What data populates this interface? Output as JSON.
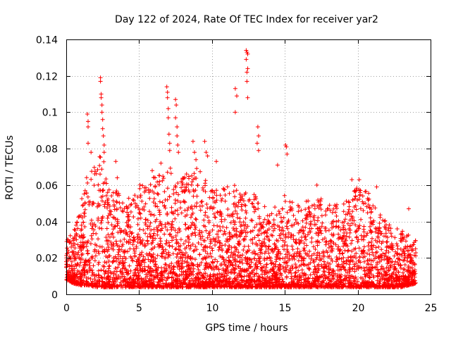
{
  "chart_data": {
    "type": "scatter",
    "title": "Day 122 of 2024, Rate Of TEC Index for receiver yar2",
    "xlabel": "GPS time / hours",
    "ylabel": "ROTI / TECUs",
    "xlim": [
      0,
      25
    ],
    "ylim": [
      0,
      0.14
    ],
    "x_ticks": [
      "0",
      "5",
      "10",
      "15",
      "20",
      "25"
    ],
    "y_ticks": [
      "0",
      "0.02",
      "0.04",
      "0.06",
      "0.08",
      "0.1",
      "0.12",
      "0.14"
    ],
    "grid": true,
    "marker": "plus",
    "color": "#ff0000",
    "series": [
      {
        "name": "ROTI",
        "note": "dense red point cloud; peaks listed, bulk summarized by envelope",
        "data_x_range": [
          0,
          24
        ],
        "baseline_envelope": [
          [
            0.0,
            0.008,
            0.03
          ],
          [
            0.5,
            0.006,
            0.035
          ],
          [
            1.0,
            0.005,
            0.05
          ],
          [
            1.5,
            0.005,
            0.07
          ],
          [
            2.0,
            0.004,
            0.075
          ],
          [
            2.5,
            0.004,
            0.08
          ],
          [
            3.0,
            0.004,
            0.055
          ],
          [
            3.5,
            0.004,
            0.06
          ],
          [
            4.0,
            0.004,
            0.05
          ],
          [
            5.0,
            0.004,
            0.06
          ],
          [
            6.0,
            0.004,
            0.065
          ],
          [
            7.0,
            0.004,
            0.07
          ],
          [
            8.0,
            0.004,
            0.065
          ],
          [
            9.0,
            0.004,
            0.07
          ],
          [
            10.0,
            0.004,
            0.06
          ],
          [
            11.0,
            0.004,
            0.06
          ],
          [
            12.0,
            0.004,
            0.06
          ],
          [
            13.0,
            0.004,
            0.055
          ],
          [
            14.0,
            0.004,
            0.045
          ],
          [
            15.0,
            0.004,
            0.055
          ],
          [
            16.0,
            0.004,
            0.05
          ],
          [
            17.0,
            0.004,
            0.055
          ],
          [
            18.0,
            0.004,
            0.05
          ],
          [
            19.0,
            0.004,
            0.05
          ],
          [
            20.0,
            0.004,
            0.06
          ],
          [
            21.0,
            0.004,
            0.055
          ],
          [
            22.0,
            0.004,
            0.04
          ],
          [
            23.0,
            0.004,
            0.035
          ],
          [
            24.0,
            0.006,
            0.03
          ]
        ],
        "peaks": [
          [
            1.45,
            0.099
          ],
          [
            1.5,
            0.095
          ],
          [
            1.5,
            0.092
          ],
          [
            1.5,
            0.083
          ],
          [
            1.7,
            0.078
          ],
          [
            2.35,
            0.119
          ],
          [
            2.35,
            0.117
          ],
          [
            2.4,
            0.11
          ],
          [
            2.4,
            0.108
          ],
          [
            2.45,
            0.104
          ],
          [
            2.45,
            0.1
          ],
          [
            2.5,
            0.096
          ],
          [
            2.5,
            0.091
          ],
          [
            2.55,
            0.087
          ],
          [
            2.6,
            0.082
          ],
          [
            2.6,
            0.078
          ],
          [
            3.4,
            0.073
          ],
          [
            3.5,
            0.064
          ],
          [
            5.9,
            0.068
          ],
          [
            6.1,
            0.064
          ],
          [
            6.5,
            0.072
          ],
          [
            6.9,
            0.114
          ],
          [
            6.95,
            0.111
          ],
          [
            6.95,
            0.108
          ],
          [
            7.0,
            0.102
          ],
          [
            7.0,
            0.097
          ],
          [
            7.05,
            0.088
          ],
          [
            7.1,
            0.083
          ],
          [
            7.1,
            0.079
          ],
          [
            7.5,
            0.107
          ],
          [
            7.55,
            0.104
          ],
          [
            7.5,
            0.097
          ],
          [
            7.6,
            0.092
          ],
          [
            7.6,
            0.087
          ],
          [
            7.65,
            0.082
          ],
          [
            7.7,
            0.078
          ],
          [
            8.7,
            0.084
          ],
          [
            8.8,
            0.078
          ],
          [
            8.9,
            0.074
          ],
          [
            9.5,
            0.084
          ],
          [
            9.6,
            0.078
          ],
          [
            9.7,
            0.076
          ],
          [
            10.3,
            0.073
          ],
          [
            11.6,
            0.113
          ],
          [
            11.7,
            0.109
          ],
          [
            11.6,
            0.1
          ],
          [
            12.35,
            0.134
          ],
          [
            12.4,
            0.133
          ],
          [
            12.45,
            0.132
          ],
          [
            12.35,
            0.129
          ],
          [
            12.45,
            0.124
          ],
          [
            12.4,
            0.122
          ],
          [
            12.4,
            0.117
          ],
          [
            12.45,
            0.108
          ],
          [
            13.15,
            0.092
          ],
          [
            13.2,
            0.087
          ],
          [
            13.1,
            0.083
          ],
          [
            13.2,
            0.079
          ],
          [
            14.5,
            0.071
          ],
          [
            15.05,
            0.082
          ],
          [
            15.1,
            0.081
          ],
          [
            15.15,
            0.077
          ],
          [
            17.2,
            0.06
          ],
          [
            19.6,
            0.063
          ],
          [
            20.1,
            0.063
          ],
          [
            21.3,
            0.059
          ],
          [
            23.5,
            0.047
          ]
        ]
      }
    ]
  }
}
